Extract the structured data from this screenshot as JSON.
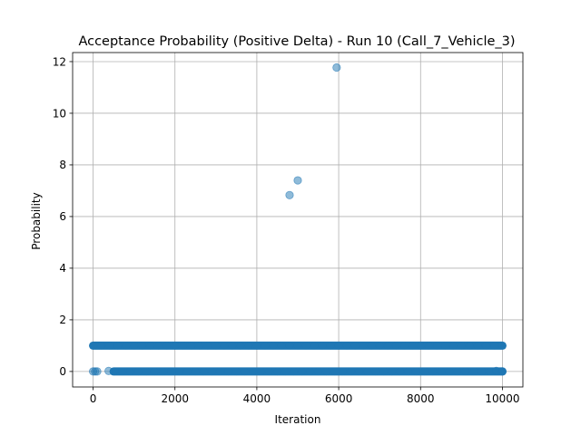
{
  "chart_data": {
    "type": "scatter",
    "title": "Acceptance Probability (Positive Delta) - Run 10 (Call_7_Vehicle_3)",
    "xlabel": "Iteration",
    "ylabel": "Probability",
    "xlim": [
      -500,
      10500
    ],
    "ylim": [
      -0.6,
      12.35
    ],
    "xticks": [
      0,
      2000,
      4000,
      6000,
      8000,
      10000
    ],
    "xtick_labels": [
      "0",
      "2000",
      "4000",
      "6000",
      "8000",
      "10000"
    ],
    "yticks": [
      0,
      2,
      4,
      6,
      8,
      10,
      12
    ],
    "ytick_labels": [
      "0",
      "2",
      "4",
      "6",
      "8",
      "10",
      "12"
    ],
    "grid": true,
    "marker_color": "#1f77b4",
    "marker_alpha": 0.5,
    "series": [
      {
        "points": [
          [
            4800,
            6.83
          ],
          [
            5000,
            7.4
          ],
          [
            5950,
            11.77
          ],
          [
            380,
            0.02
          ],
          [
            0,
            0.0
          ],
          [
            50,
            0.0
          ],
          [
            100,
            0.0
          ],
          [
            9850,
            0.02
          ],
          [
            10000,
            0.0
          ]
        ],
        "dense_bands": [
          {
            "y": 1.0,
            "x_start": 0,
            "x_end": 10000
          },
          {
            "y": 0.0,
            "x_start": 500,
            "x_end": 10000
          }
        ]
      }
    ]
  }
}
